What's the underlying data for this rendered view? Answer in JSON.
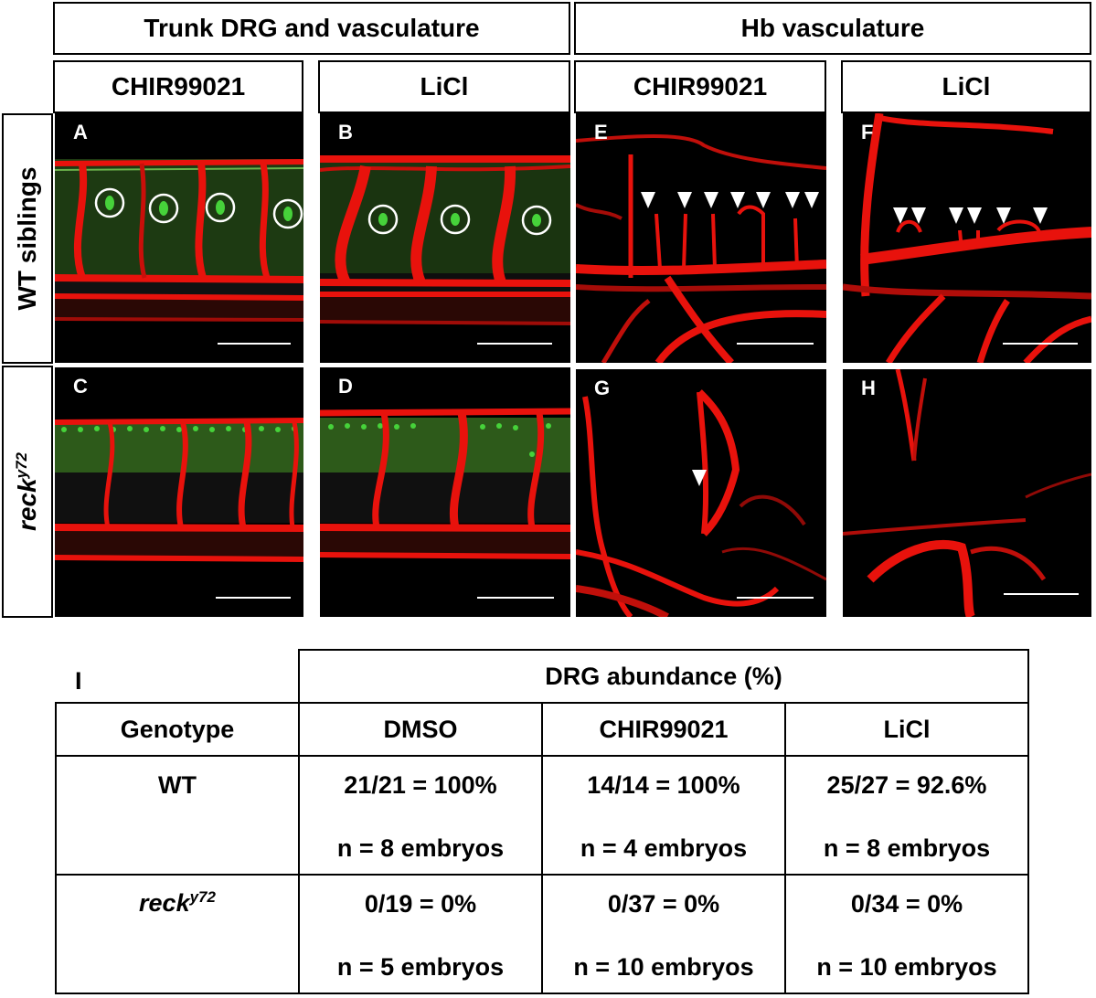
{
  "headers": {
    "group_left": "Trunk DRG and vasculature",
    "group_right": "Hb vasculature",
    "columns": [
      "CHIR99021",
      "LiCl",
      "CHIR99021",
      "LiCl"
    ],
    "row_wt": "WT siblings",
    "row_mut_italic": "reck",
    "row_mut_sup": "y72"
  },
  "panels": [
    "A",
    "B",
    "C",
    "D",
    "E",
    "F",
    "G",
    "H"
  ],
  "colors": {
    "vessel": "#e8120c",
    "drg": "#46d23a",
    "arrow": "#ffffff"
  },
  "table": {
    "panel_label": "I",
    "header_span": "DRG abundance (%)",
    "col_headers": [
      "Genotype",
      "DMSO",
      "CHIR99021",
      "LiCl"
    ],
    "rows": [
      {
        "genotype": "WT",
        "genotype_sup": "",
        "cells": [
          {
            "ratio": "21/21 = 100%",
            "n": "n = 8 embryos"
          },
          {
            "ratio": "14/14 = 100%",
            "n": "n = 4 embryos"
          },
          {
            "ratio": "25/27 = 92.6%",
            "n": "n = 8 embryos"
          }
        ]
      },
      {
        "genotype": "reck",
        "genotype_sup": "y72",
        "cells": [
          {
            "ratio": "0/19 = 0%",
            "n": "n = 5 embryos"
          },
          {
            "ratio": "0/37 = 0%",
            "n": "n = 10 embryos"
          },
          {
            "ratio": "0/34 = 0%",
            "n": "n = 10 embryos"
          }
        ]
      }
    ]
  }
}
